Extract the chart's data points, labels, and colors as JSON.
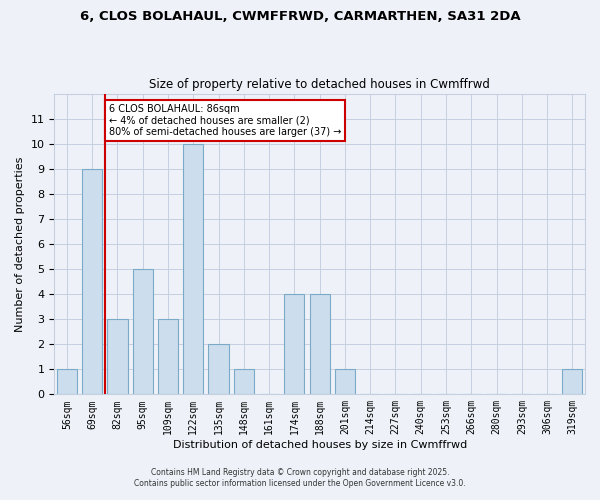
{
  "title": "6, CLOS BOLAHAUL, CWMFFRWD, CARMARTHEN, SA31 2DA",
  "subtitle": "Size of property relative to detached houses in Cwmffrwd",
  "xlabel": "Distribution of detached houses by size in Cwmffrwd",
  "ylabel": "Number of detached properties",
  "bar_labels": [
    "56sqm",
    "69sqm",
    "82sqm",
    "95sqm",
    "109sqm",
    "122sqm",
    "135sqm",
    "148sqm",
    "161sqm",
    "174sqm",
    "188sqm",
    "201sqm",
    "214sqm",
    "227sqm",
    "240sqm",
    "253sqm",
    "266sqm",
    "280sqm",
    "293sqm",
    "306sqm",
    "319sqm"
  ],
  "bar_values": [
    1,
    9,
    3,
    5,
    3,
    10,
    2,
    1,
    0,
    4,
    4,
    1,
    0,
    0,
    0,
    0,
    0,
    0,
    0,
    0,
    1
  ],
  "bar_color": "#ccdded",
  "bar_edge_color": "#7aaac8",
  "grid_color": "#c5cfe0",
  "background_color": "#eef2f8",
  "red_line_x": 1.5,
  "annotation_title": "6 CLOS BOLAHAUL: 86sqm",
  "annotation_line1": "← 4% of detached houses are smaller (2)",
  "annotation_line2": "80% of semi-detached houses are larger (37) →",
  "annotation_box_color": "#ffffff",
  "annotation_box_edge_color": "#cc0000",
  "red_line_color": "#cc0000",
  "ylim": [
    0,
    12
  ],
  "yticks": [
    0,
    1,
    2,
    3,
    4,
    5,
    6,
    7,
    8,
    9,
    10,
    11,
    12
  ],
  "footer1": "Contains HM Land Registry data © Crown copyright and database right 2025.",
  "footer2": "Contains public sector information licensed under the Open Government Licence v3.0."
}
